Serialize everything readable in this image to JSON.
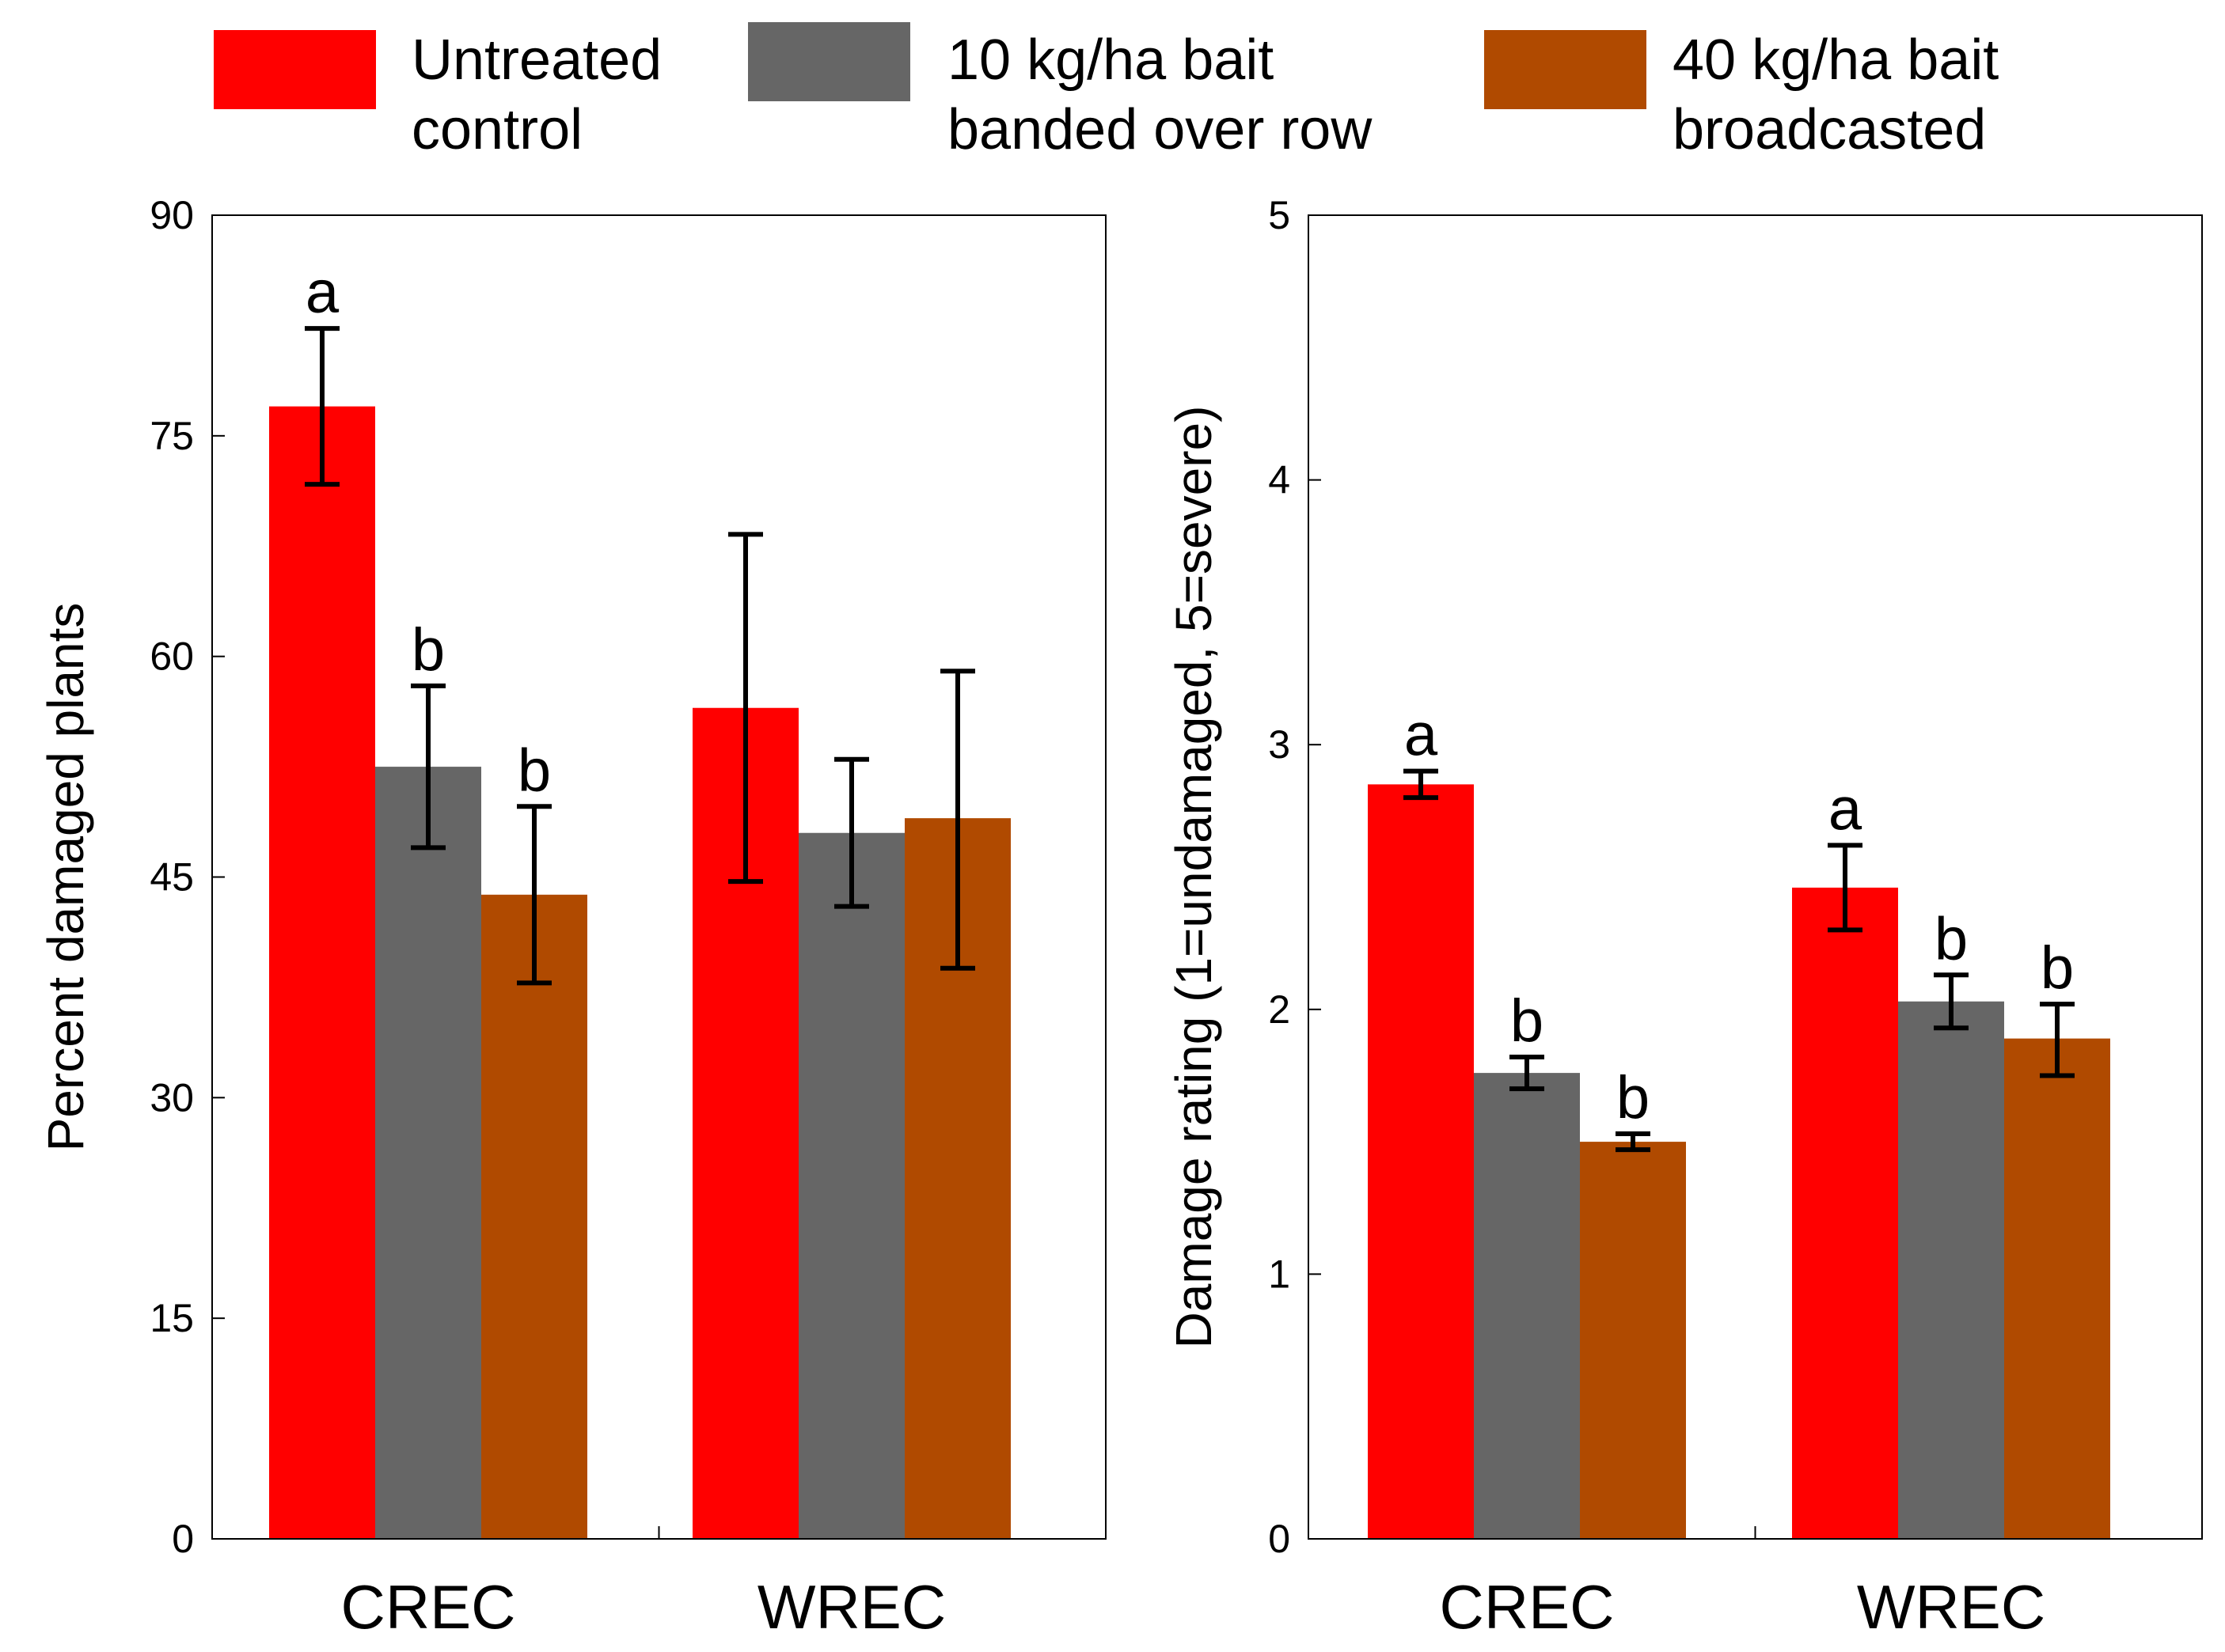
{
  "legend": [
    {
      "line1": "Untreated",
      "line2": "control",
      "color": "#ff0000"
    },
    {
      "line1": "10 kg/ha bait",
      "line2": "banded over row",
      "color": "#666666"
    },
    {
      "line1": "40 kg/ha bait",
      "line2": "broadcasted",
      "color": "#b04a00"
    }
  ],
  "chart_data": [
    {
      "type": "bar",
      "title": "",
      "xlabel": "",
      "ylabel": "Percent damaged plants",
      "ylim": [
        0,
        90
      ],
      "yticks": [
        0,
        15,
        30,
        45,
        60,
        75,
        90
      ],
      "categories": [
        "CREC",
        "WREC"
      ],
      "series": [
        {
          "name": "Untreated control",
          "color": "#ff0000",
          "values": [
            77,
            56.5
          ],
          "error_low": [
            71.7,
            44.7
          ],
          "error_high": [
            82.3,
            68.3
          ],
          "sig": [
            "a",
            ""
          ]
        },
        {
          "name": "10 kg/ha bait banded over row",
          "color": "#666666",
          "values": [
            52.5,
            48
          ],
          "error_low": [
            47,
            43
          ],
          "error_high": [
            58,
            53
          ],
          "sig": [
            "b",
            ""
          ]
        },
        {
          "name": "40 kg/ha bait broadcasted",
          "color": "#b04a00",
          "values": [
            43.8,
            49
          ],
          "error_low": [
            37.8,
            38.8
          ],
          "error_high": [
            49.8,
            59
          ],
          "sig": [
            "b",
            ""
          ]
        }
      ]
    },
    {
      "type": "bar",
      "title": "",
      "xlabel": "",
      "ylabel": "Damage rating (1=undamaged, 5=severe)",
      "ylim": [
        0,
        5
      ],
      "yticks": [
        0,
        1,
        2,
        3,
        4,
        5
      ],
      "categories": [
        "CREC",
        "WREC"
      ],
      "series": [
        {
          "name": "Untreated control",
          "color": "#ff0000",
          "values": [
            2.85,
            2.46
          ],
          "error_low": [
            2.8,
            2.3
          ],
          "error_high": [
            2.9,
            2.62
          ],
          "sig": [
            "a",
            "a"
          ]
        },
        {
          "name": "10 kg/ha bait banded over row",
          "color": "#666666",
          "values": [
            1.76,
            2.03
          ],
          "error_low": [
            1.7,
            1.93
          ],
          "error_high": [
            1.82,
            2.13
          ],
          "sig": [
            "b",
            "b"
          ]
        },
        {
          "name": "40 kg/ha bait broadcasted",
          "color": "#b04a00",
          "values": [
            1.5,
            1.89
          ],
          "error_low": [
            1.47,
            1.75
          ],
          "error_high": [
            1.53,
            2.02
          ],
          "sig": [
            "b",
            "b"
          ]
        }
      ]
    }
  ]
}
